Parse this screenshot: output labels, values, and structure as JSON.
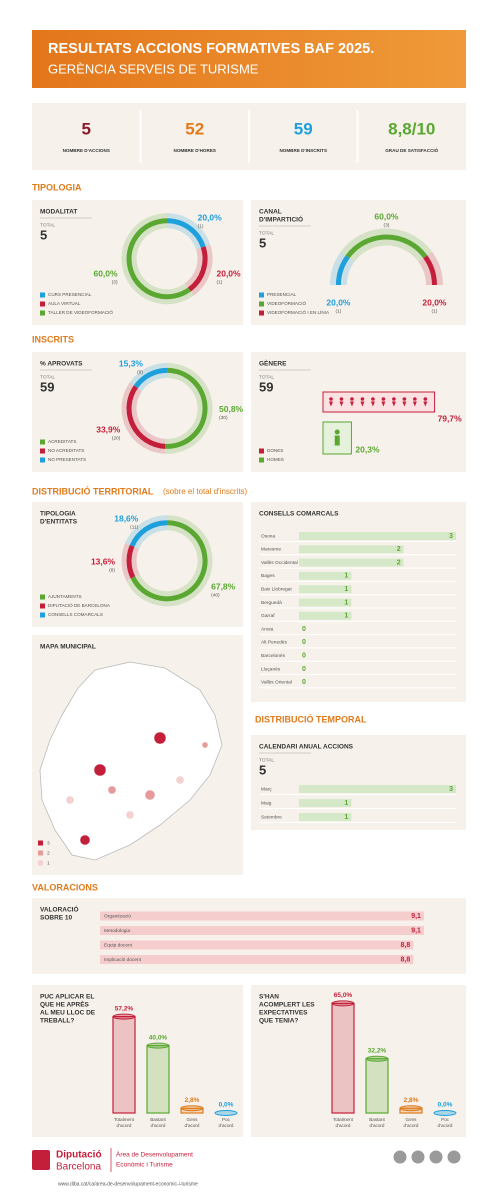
{
  "header": {
    "title": "RESULTATS ACCIONS FORMATIVES BAF 2025.",
    "subtitle": "GERÈNCIA SERVEIS DE TURISME"
  },
  "kpis": [
    {
      "value": 5,
      "label": "NOMBRE D'ACCIONS",
      "color": "#8a1a2a"
    },
    {
      "value": 52,
      "label": "NOMBRE D'HORES",
      "color": "#e07b1c"
    },
    {
      "value": 59,
      "label": "NOMBRE D'INSCRITS",
      "color": "#1ea0dc"
    },
    {
      "value": "8,8/10",
      "label": "GRAU DE SATISFACCIÓ",
      "color": "#5aa832"
    }
  ],
  "sections": {
    "tipologia": "TIPOLOGIA",
    "inscrits": "INSCRITS",
    "territorial": "DISTRIBUCIÓ TERRITORIAL",
    "territorial_note": "(sobre el total d'inscrits)",
    "temporal": "DISTRIBUCIÓ TEMPORAL",
    "valoracions": "VALORACIONS"
  },
  "chart_data": [
    {
      "type": "donut",
      "title": [
        "MODALITAT"
      ],
      "total_label": "TOTAL",
      "total": 5,
      "categories": [
        "CURS PRESENCIAL",
        "AULA VIRTUAL",
        "TALLER DE VIDEOFORMACIÓ"
      ],
      "values": [
        20.0,
        20.0,
        60.0
      ],
      "value_labels": [
        "20,0%",
        "20,0%",
        "60,0%"
      ],
      "counts": [
        1,
        1,
        3
      ],
      "count_labels": [
        "(1)",
        "(1)",
        "(3)"
      ],
      "colors": [
        "#1ea0dc",
        "#c41f3a",
        "#5aa832"
      ]
    },
    {
      "type": "half-donut",
      "title": [
        "CANAL",
        "D'IMPARTICIÓ"
      ],
      "total_label": "TOTAL",
      "total": 5,
      "categories": [
        "PRESENCIAL",
        "VIDEOFORMACIÓ",
        "VIDEOFORMACIÓ I EN LÍNIA"
      ],
      "values": [
        20.0,
        60.0,
        20.0
      ],
      "value_labels": [
        "20,0%",
        "60,0%",
        "20,0%"
      ],
      "counts": [
        1,
        3,
        1
      ],
      "count_labels": [
        "(1)",
        "(3)",
        "(1)"
      ],
      "colors": [
        "#1ea0dc",
        "#5aa832",
        "#c41f3a"
      ]
    },
    {
      "type": "donut",
      "title": [
        "% APROVATS"
      ],
      "total_label": "TOTAL",
      "total": 59,
      "categories": [
        "ACREDITATS",
        "NO ACREDITATS",
        "NO PRESENTATS"
      ],
      "values": [
        50.8,
        33.9,
        15.3
      ],
      "value_labels": [
        "50,8%",
        "33,9%",
        "15,3%"
      ],
      "counts": [
        30,
        20,
        9
      ],
      "count_labels": [
        "(30)",
        "(20)",
        "(9)"
      ],
      "colors": [
        "#5aa832",
        "#c41f3a",
        "#1ea0dc"
      ]
    },
    {
      "type": "pictogram",
      "title": [
        "GÈNERE"
      ],
      "total_label": "TOTAL",
      "total": 59,
      "categories": [
        "DONES",
        "HOMES"
      ],
      "values": [
        79.7,
        20.3
      ],
      "value_labels": [
        "79,7%",
        "20,3%"
      ],
      "colors": [
        "#c41f3a",
        "#5aa832"
      ]
    },
    {
      "type": "donut",
      "title": [
        "TIPOLOGIA",
        "D'ENTITATS"
      ],
      "categories": [
        "AJUNTAMENTS",
        "DIPUTACIÓ DE BARCELONA",
        "CONSELLS COMARCALS"
      ],
      "values": [
        67.8,
        13.6,
        18.6
      ],
      "value_labels": [
        "67,8%",
        "13,6%",
        "18,6%"
      ],
      "counts": [
        40,
        8,
        11
      ],
      "count_labels": [
        "(40)",
        "(8)",
        "(11)"
      ],
      "colors": [
        "#5aa832",
        "#c41f3a",
        "#1ea0dc"
      ]
    },
    {
      "type": "hbar",
      "title": [
        "CONSELLS COMARCALS"
      ],
      "categories": [
        "Osona",
        "Maresme",
        "Vallès Occidental",
        "Bages",
        "Baix Llobregat",
        "Berguedà",
        "Garraf",
        "Anoia",
        "Alt Penedès",
        "Barcelonès",
        "Lluçanès",
        "Vallès Oriental"
      ],
      "values": [
        3,
        2,
        2,
        1,
        1,
        1,
        1,
        0,
        0,
        0,
        0,
        0
      ],
      "xlim": [
        0,
        3
      ],
      "color": "#d5e9c8",
      "label_color": "#5aa832"
    },
    {
      "type": "hbar",
      "title": [
        "CALENDARI ANUAL ACCIONS"
      ],
      "total_label": "TOTAL",
      "total": 5,
      "categories": [
        "Març",
        "Maig",
        "Setembre"
      ],
      "values": [
        3,
        1,
        1
      ],
      "xlim": [
        0,
        3
      ],
      "color": "#d5e9c8",
      "label_color": "#5aa832"
    },
    {
      "type": "hbar",
      "title": [
        "VALORACIÓ",
        "SOBRE 10"
      ],
      "categories": [
        "Organització",
        "Metodologia",
        "Equip docent",
        "Implicació docent"
      ],
      "values": [
        9.1,
        9.1,
        8.8,
        8.8
      ],
      "value_labels": [
        "9,1",
        "9,1",
        "8,8",
        "8,8"
      ],
      "xlim": [
        0,
        10
      ],
      "color": "#f5cdcd",
      "label_color": "#c41f3a"
    },
    {
      "type": "vbar",
      "title": [
        "PUC APLICAR EL",
        "QUE HE APRÈS",
        "AL MEU LLOC DE",
        "TREBALL?"
      ],
      "categories": [
        [
          "Totalment",
          "d'acord"
        ],
        [
          "Bastant",
          "d'acord"
        ],
        [
          "Gens",
          "d'acord"
        ],
        [
          "Poc",
          "d'acord"
        ]
      ],
      "values": [
        57.2,
        40.0,
        2.8,
        0.0
      ],
      "value_labels": [
        "57,2%",
        "40,0%",
        "2,8%",
        "0,0%"
      ],
      "ylim": [
        0,
        70
      ],
      "colors": [
        "#c41f3a",
        "#5aa832",
        "#e07b1c",
        "#1ea0dc"
      ]
    },
    {
      "type": "vbar",
      "title": [
        "S'HAN",
        "ACOMPLERT LES",
        "EXPECTATIVES",
        "QUE TENIA?"
      ],
      "categories": [
        [
          "Totalment",
          "d'acord"
        ],
        [
          "Bastant",
          "d'acord"
        ],
        [
          "Gens",
          "d'acord"
        ],
        [
          "Poc",
          "d'acord"
        ]
      ],
      "values": [
        65.0,
        32.2,
        2.8,
        0.0
      ],
      "value_labels": [
        "65,0%",
        "32,2%",
        "2,8%",
        "0,0%"
      ],
      "ylim": [
        0,
        70
      ],
      "colors": [
        "#c41f3a",
        "#5aa832",
        "#e07b1c",
        "#1ea0dc"
      ]
    }
  ],
  "map": {
    "title": "MAPA MUNICIPAL",
    "legend_values": [
      3,
      2,
      1
    ],
    "legend_colors": [
      "#c41f3a",
      "#e89a9a",
      "#f4d0d0"
    ]
  },
  "footer": {
    "org": [
      "Diputació",
      "Barcelona"
    ],
    "area": [
      "Àrea de Desenvolupament",
      "Econòmic i Turisme"
    ],
    "url": "www.diba.cat/ca/area-de-desenvolupament-economic-i-turisme"
  }
}
